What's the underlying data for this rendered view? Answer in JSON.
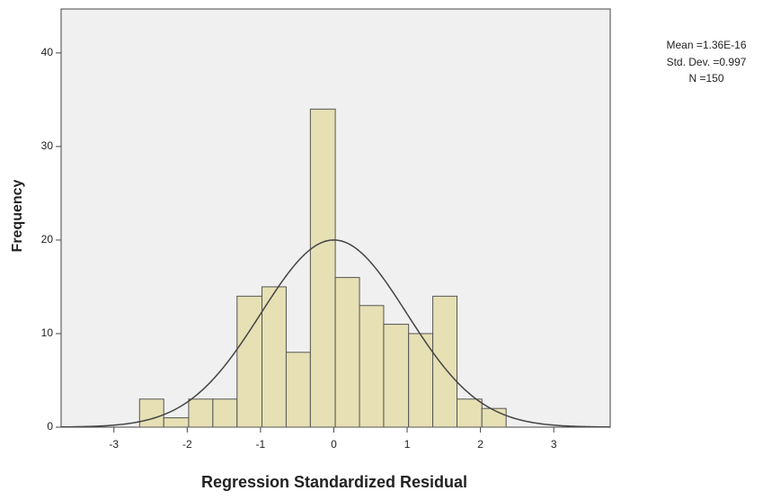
{
  "chart_data": {
    "type": "histogram",
    "bins": [
      -2.65,
      -2.32,
      -1.98,
      -1.65,
      -1.32,
      -0.98,
      -0.65,
      -0.32,
      0.02,
      0.35,
      0.68,
      1.02,
      1.35,
      1.68,
      2.02,
      2.35
    ],
    "values": [
      3,
      1,
      3,
      3,
      14,
      15,
      8,
      34,
      16,
      13,
      11,
      10,
      14,
      3,
      2
    ],
    "color": "#e6e0b4",
    "xlabel": "Regression Standardized Residual",
    "ylabel": "Frequency",
    "xlim": [
      -3.72,
      3.77
    ],
    "xticks": [
      -3,
      -2,
      -1,
      0,
      1,
      2,
      3
    ],
    "ylim": [
      0,
      44.7
    ],
    "yticks": [
      0,
      10,
      20,
      30,
      40
    ],
    "stats": {
      "mean": {
        "value": 1.36e-16,
        "label": "Mean =1.36E-16"
      },
      "sd": {
        "value": 0.997,
        "label": "Std. Dev. =0.997"
      },
      "n": {
        "value": 150,
        "label": "N =150"
      }
    }
  }
}
